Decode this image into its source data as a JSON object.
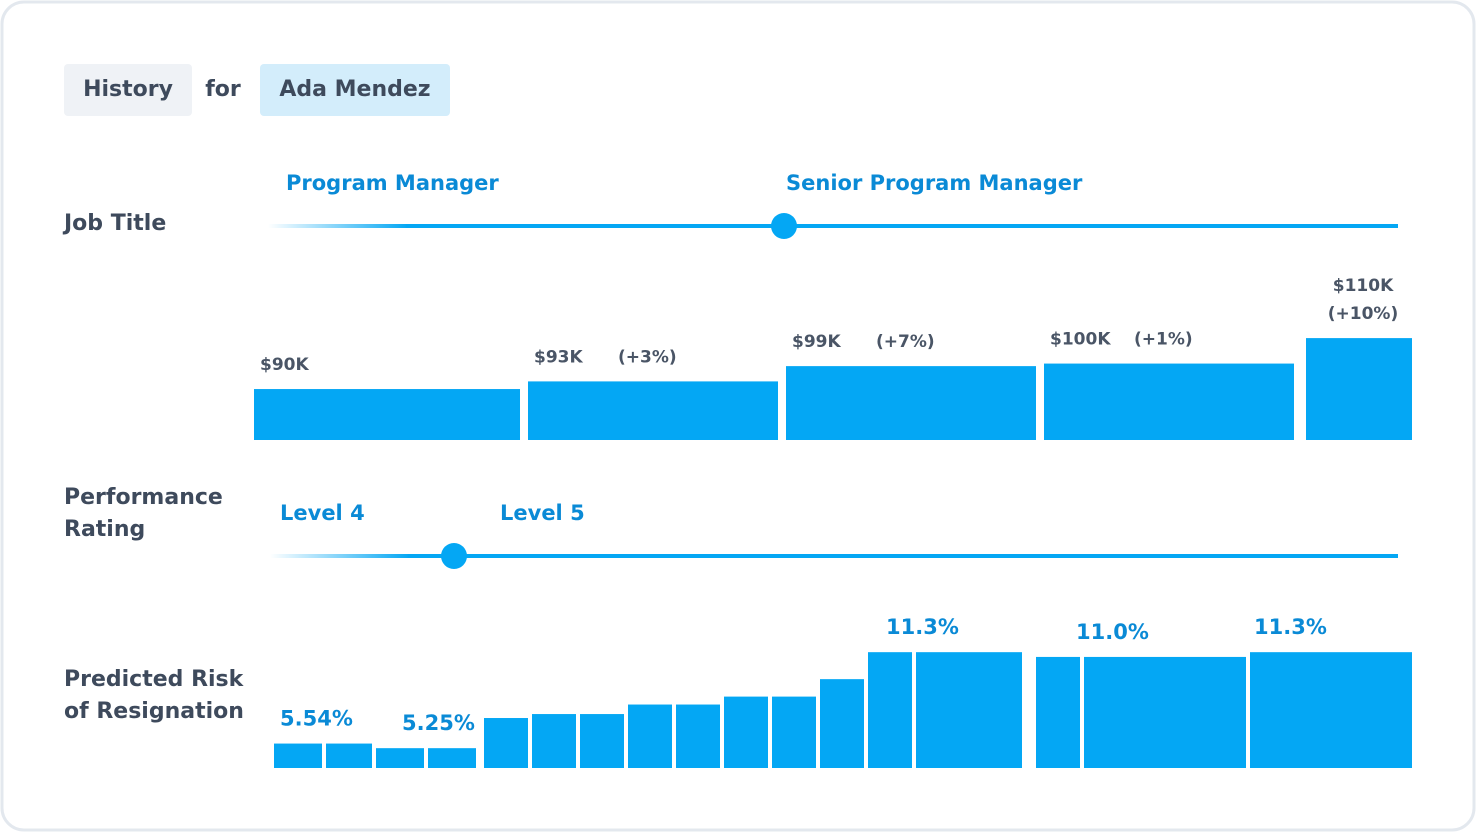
{
  "header": {
    "label": "History",
    "connector": "for",
    "person": "Ada Mendez"
  },
  "job_title": {
    "label": "Job Title",
    "titles": [
      "Program Manager",
      "Senior Program Manager"
    ]
  },
  "salary": {
    "values": [
      90,
      93,
      99,
      100,
      110
    ],
    "value_labels": [
      "$90K",
      "$93K",
      "$99K",
      "$100K",
      "$110K"
    ],
    "changes": [
      null,
      "(+3%)",
      "(+7%)",
      "(+1%)",
      "(+10%)"
    ],
    "ylim": [
      70,
      112
    ],
    "color": "#04a7f4"
  },
  "performance": {
    "label": "Performance Rating",
    "levels": [
      "Level 4",
      "Level 5"
    ]
  },
  "risk": {
    "label": "Predicted Risk of Resignation",
    "values": [
      5.54,
      5.54,
      5.25,
      5.25,
      7.15,
      7.4,
      7.4,
      8.0,
      8.0,
      8.5,
      8.5,
      9.6,
      11.3,
      11.3,
      11.0,
      11.0,
      11.3
    ],
    "value_labels": [
      "5.54%",
      null,
      null,
      "5.25%",
      null,
      null,
      null,
      null,
      null,
      null,
      null,
      null,
      "11.3%",
      null,
      null,
      "11.0%",
      "11.3%"
    ],
    "ylim": [
      4,
      11.5
    ],
    "color": "#04a7f4"
  }
}
